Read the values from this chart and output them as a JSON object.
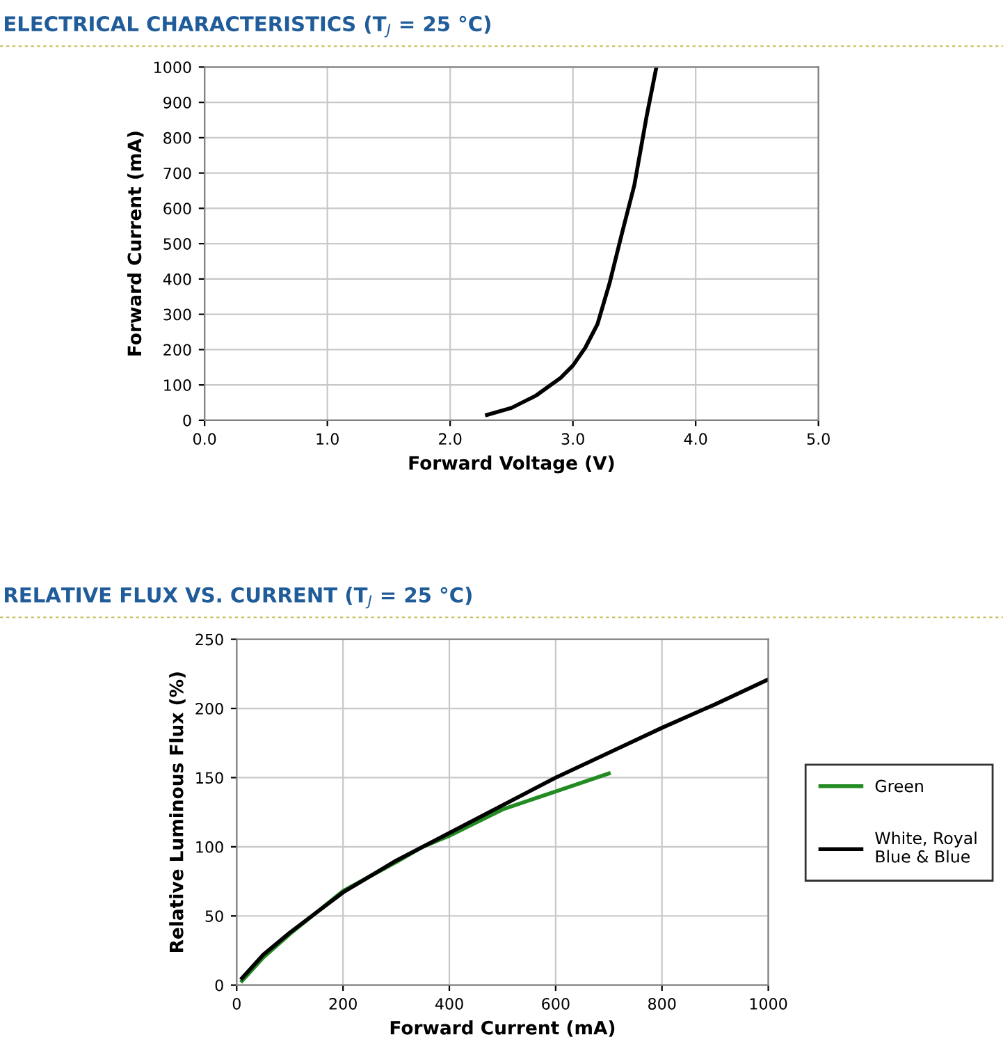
{
  "chart_data": [
    {
      "type": "line",
      "title": "ELECTRICAL CHARACTERISTICS (T$_{J}$ = 25 °C)",
      "xlabel": "Forward Voltage (V)",
      "ylabel": "Forward Current (mA)",
      "x": [
        2.3,
        2.5,
        2.7,
        2.9,
        3.0,
        3.1,
        3.2,
        3.3,
        3.4,
        3.5,
        3.6,
        3.68
      ],
      "series": [
        {
          "color": "#000000",
          "values": [
            15,
            35,
            70,
            120,
            155,
            205,
            272,
            390,
            530,
            665,
            860,
            1000
          ]
        }
      ],
      "xlim": [
        0,
        5
      ],
      "ylim": [
        0,
        1000
      ],
      "xticks": [
        {
          "value": 0,
          "label": "0.0"
        },
        {
          "value": 1,
          "label": "1.0"
        },
        {
          "value": 2,
          "label": "2.0"
        },
        {
          "value": 3,
          "label": "3.0"
        },
        {
          "value": 4,
          "label": "4.0"
        },
        {
          "value": 5,
          "label": "5.0"
        }
      ],
      "yticks": [
        0,
        100,
        200,
        300,
        400,
        500,
        600,
        700,
        800,
        900,
        1000
      ],
      "grid": true,
      "legend": false,
      "marker": "none",
      "line_style": "solid"
    },
    {
      "type": "line",
      "title": "RELATIVE FLUX VS. CURRENT (T$_{J}$ = 25 °C)",
      "xlabel": "Forward Current (mA)",
      "ylabel": "Relative Luminous Flux (%)",
      "series": [
        {
          "name": "Green",
          "color": "#228b22",
          "x": [
            10,
            50,
            100,
            200,
            300,
            350,
            400,
            500,
            600,
            700
          ],
          "values": [
            3,
            20,
            37,
            68,
            89,
            100,
            108,
            127,
            140,
            153
          ]
        },
        {
          "name": "White, Royal\nBlue & Blue",
          "color": "#000000",
          "x": [
            10,
            50,
            100,
            200,
            300,
            400,
            500,
            600,
            700,
            800,
            900,
            1000
          ],
          "values": [
            5,
            22,
            38,
            67,
            90,
            110,
            130,
            150,
            168,
            186,
            203,
            221
          ]
        }
      ],
      "xlim": [
        0,
        1000
      ],
      "ylim": [
        0,
        250
      ],
      "xticks": [
        0,
        200,
        400,
        600,
        800,
        1000
      ],
      "yticks": [
        0,
        50,
        100,
        150,
        200,
        250
      ],
      "grid": true,
      "legend": "right",
      "marker": "none",
      "line_style": "solid"
    }
  ]
}
